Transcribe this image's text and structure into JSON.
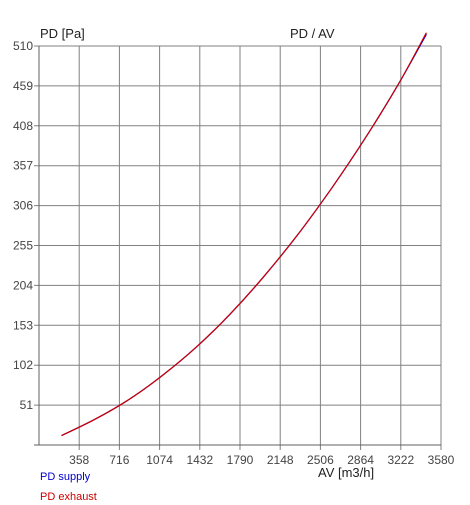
{
  "chart_data": {
    "type": "line",
    "title": "PD / AV",
    "ylabel": "PD [Pa]",
    "xlabel": "AV [m3/h]",
    "xlim": [
      0,
      3580
    ],
    "ylim": [
      0,
      510
    ],
    "x_ticks": [
      "358",
      "716",
      "1074",
      "1432",
      "1790",
      "2148",
      "2506",
      "2864",
      "3222",
      "3580"
    ],
    "y_ticks": [
      "51",
      "102",
      "153",
      "204",
      "255",
      "306",
      "357",
      "408",
      "459",
      "510"
    ],
    "grid": true,
    "legend_position": "bottom-left",
    "series": [
      {
        "name": "PD supply",
        "color": "#0000cc",
        "x": [
          200,
          500,
          800,
          1100,
          1400,
          1700,
          2000,
          2300,
          2600,
          2900,
          3200,
          3450
        ],
        "y": [
          12,
          33,
          58,
          89,
          125,
          167,
          215,
          268,
          327,
          391,
          461,
          525
        ]
      },
      {
        "name": "PD exhaust",
        "color": "#cc0000",
        "x": [
          200,
          500,
          800,
          1100,
          1400,
          1700,
          2000,
          2300,
          2600,
          2900,
          3200,
          3450
        ],
        "y": [
          12,
          33,
          58,
          89,
          125,
          167,
          215,
          268,
          327,
          391,
          461,
          527
        ]
      }
    ]
  }
}
